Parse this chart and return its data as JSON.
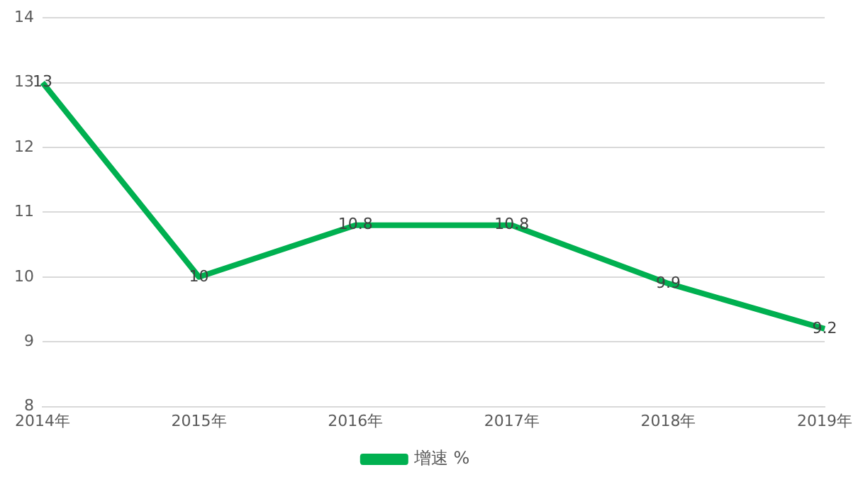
{
  "chart_data": {
    "type": "line",
    "categories": [
      "2014年",
      "2015年",
      "2016年",
      "2017年",
      "2018年",
      "2019年"
    ],
    "series": [
      {
        "name": "增速 %",
        "color": "#00b050",
        "values": [
          13,
          10,
          10.8,
          10.8,
          9.9,
          9.2
        ]
      }
    ],
    "ylim": [
      8,
      14
    ],
    "yticks": [
      8,
      9,
      10,
      11,
      12,
      13,
      14
    ],
    "grid": "y",
    "legend": "bottom",
    "data_labels": true,
    "marker": "none"
  }
}
